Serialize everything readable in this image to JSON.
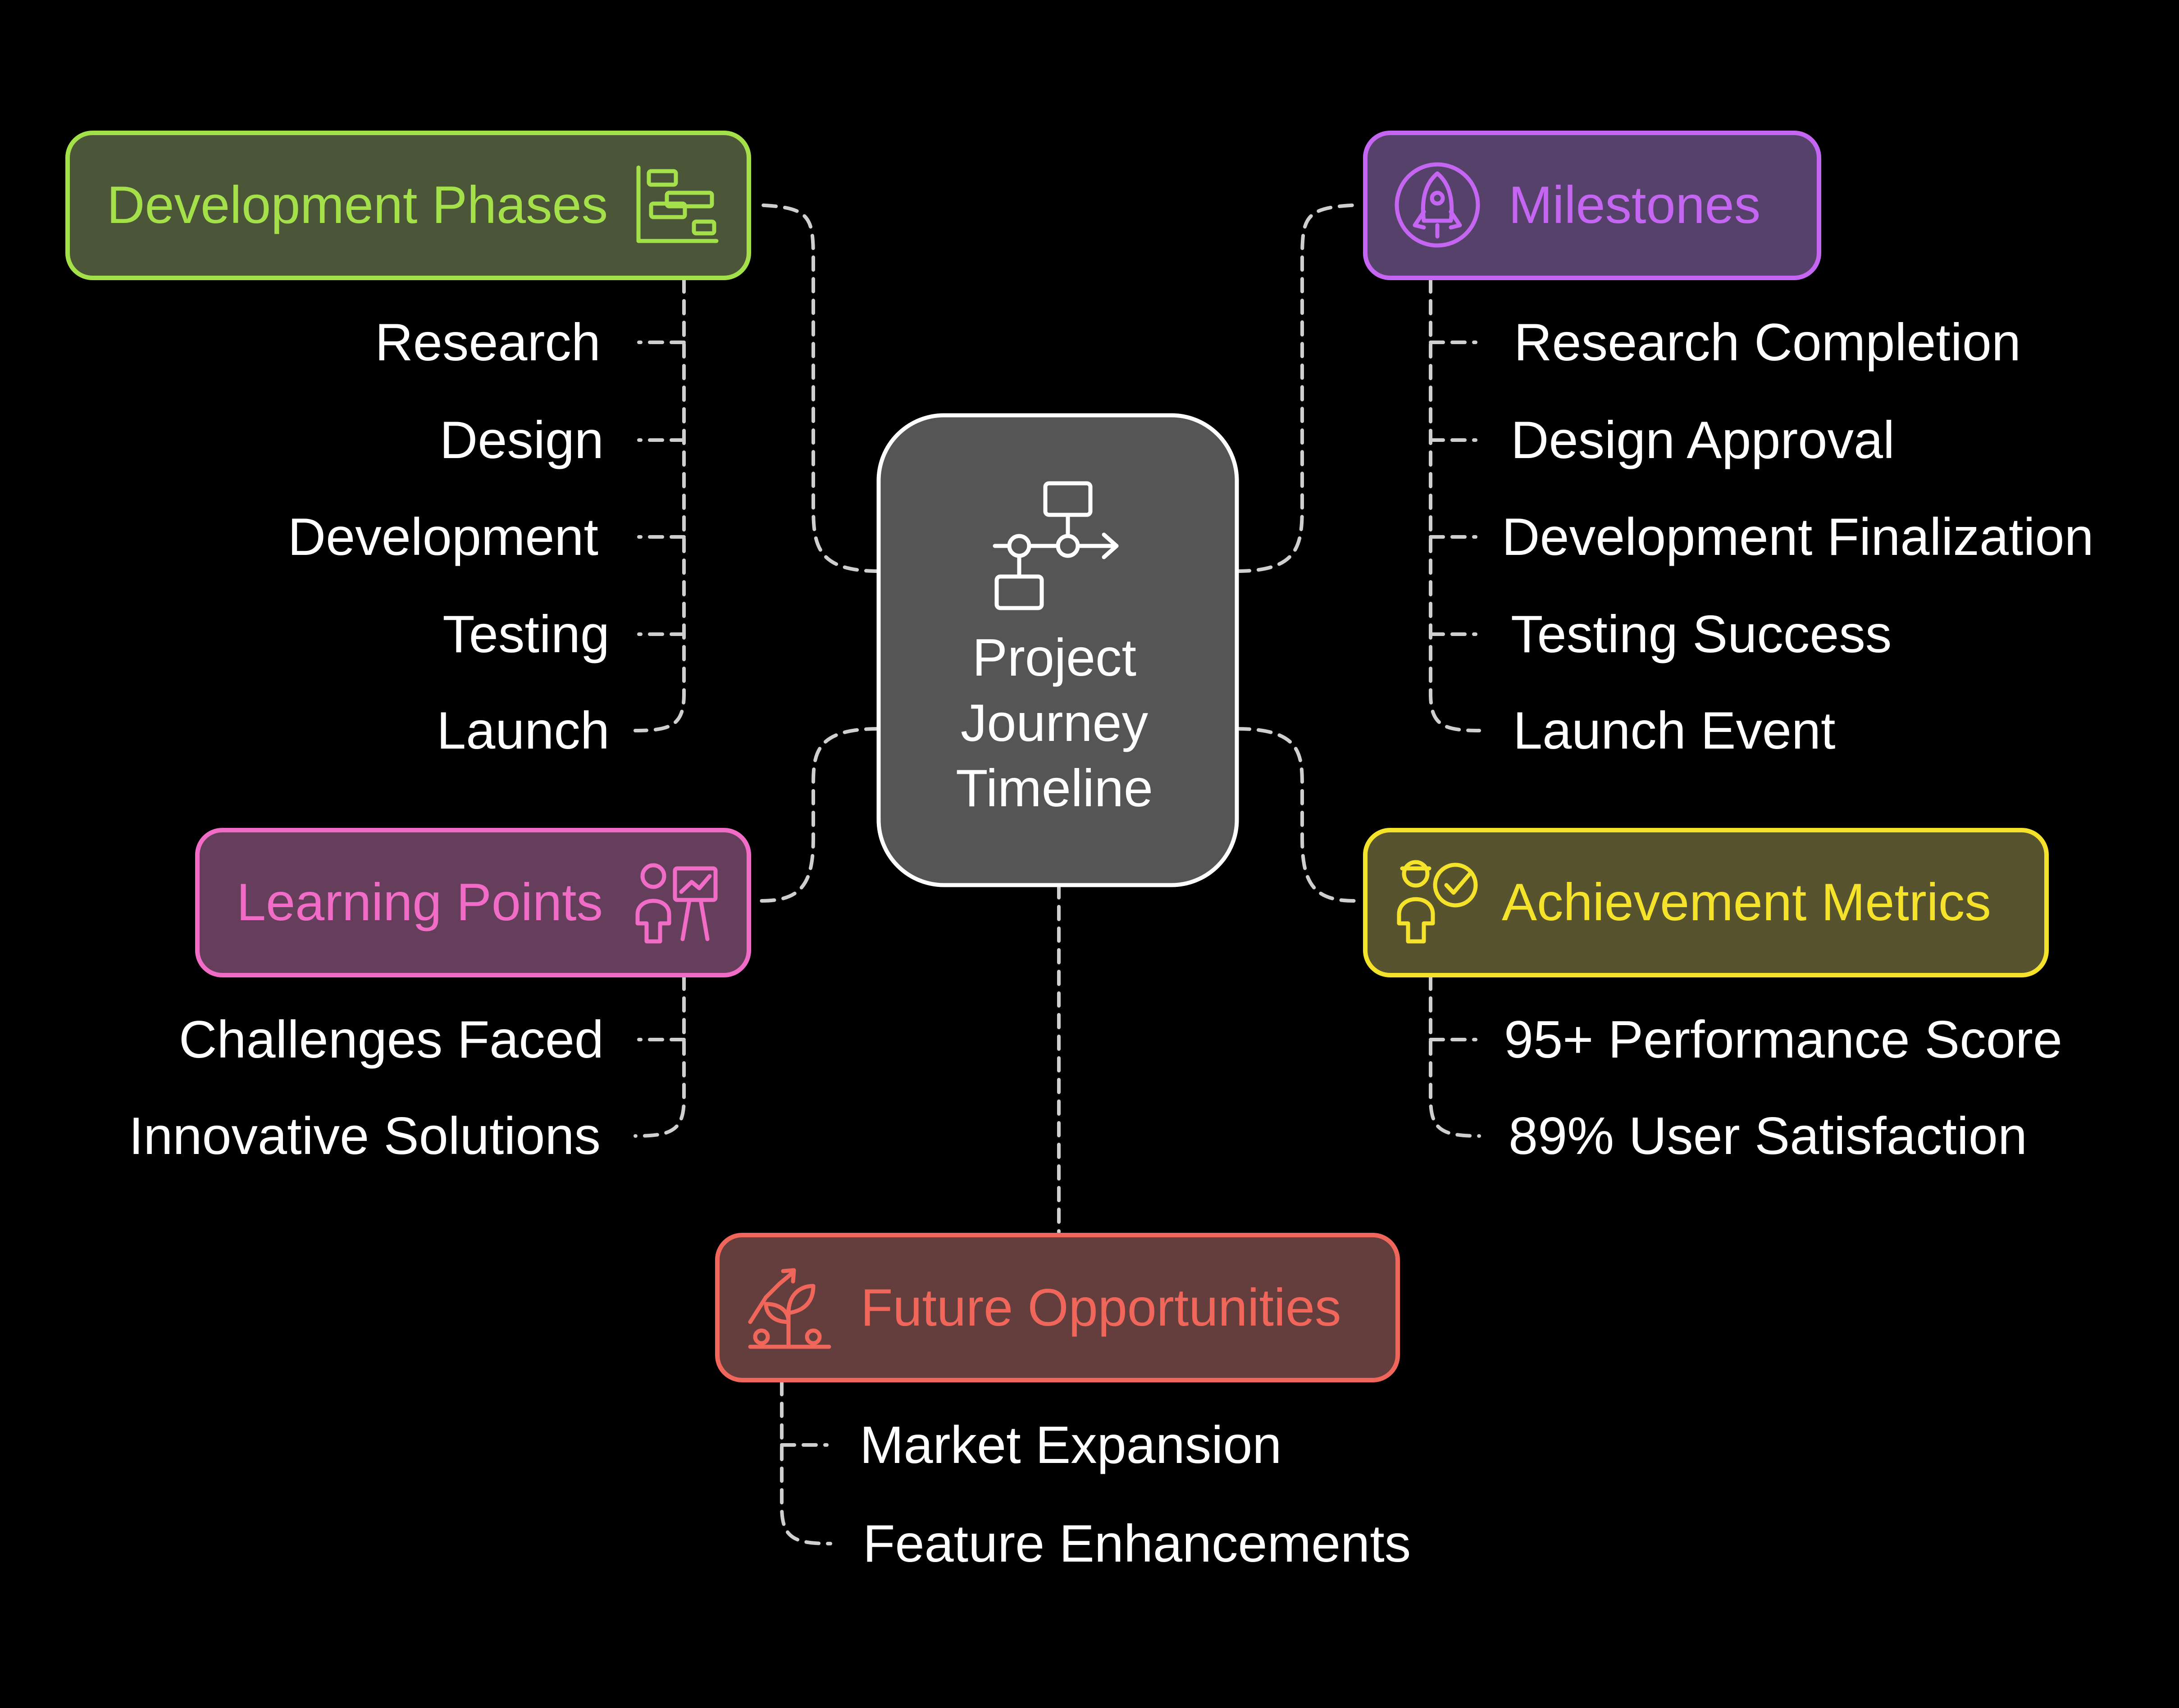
{
  "center": {
    "title_lines": [
      "Project",
      "Journey",
      "Timeline"
    ],
    "icon": "workflow-icon"
  },
  "colors": {
    "background": "#000000",
    "connector": "#cfcfcf",
    "center_fill": "#555555",
    "center_stroke": "#ffffff",
    "text": "#ffffff"
  },
  "groups": {
    "development_phases": {
      "title": "Development Phases",
      "icon": "gantt-chart-icon",
      "color": "#a4e04a",
      "fill": "#4b5538",
      "items": [
        "Research",
        "Design",
        "Development",
        "Testing",
        "Launch"
      ]
    },
    "milestones": {
      "title": "Milestones",
      "icon": "rocket-icon",
      "color": "#c566f2",
      "fill": "#55416a",
      "items": [
        "Research Completion",
        "Design Approval",
        "Development Finalization",
        "Testing Success",
        "Launch Event"
      ]
    },
    "learning_points": {
      "title": "Learning Points",
      "icon": "presenter-icon",
      "color": "#f06cc6",
      "fill": "#643e5a",
      "items": [
        "Challenges Faced",
        "Innovative Solutions"
      ]
    },
    "achievement_metrics": {
      "title": "Achievement Metrics",
      "icon": "person-check-icon",
      "color": "#f5e22a",
      "fill": "#57532e",
      "items": [
        "95+ Performance Score",
        "89% User Satisfaction"
      ]
    },
    "future_opportunities": {
      "title": "Future Opportunities",
      "icon": "growth-plant-icon",
      "color": "#f0665a",
      "fill": "#643e3c",
      "items": [
        "Market Expansion",
        "Feature Enhancements"
      ]
    }
  }
}
